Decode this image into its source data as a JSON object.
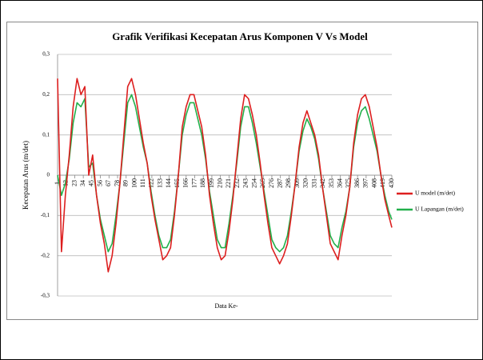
{
  "chart_data": {
    "type": "line",
    "title": "Grafik Verifikasi Kecepatan Arus Komponen V Vs Model",
    "x_label": "Data Ke-",
    "y_label": "Kecepatan Arus (m/det)",
    "x": [
      1,
      6,
      11,
      16,
      21,
      26,
      31,
      36,
      41,
      46,
      51,
      56,
      61,
      66,
      71,
      76,
      81,
      86,
      91,
      96,
      101,
      106,
      111,
      116,
      121,
      126,
      131,
      136,
      141,
      146,
      151,
      156,
      161,
      166,
      171,
      176,
      181,
      186,
      191,
      196,
      201,
      206,
      211,
      216,
      221,
      226,
      231,
      236,
      241,
      246,
      251,
      256,
      261,
      266,
      271,
      276,
      281,
      286,
      291,
      296,
      301,
      306,
      311,
      316,
      321,
      326,
      331,
      336,
      341,
      346,
      351,
      356,
      361,
      366,
      371,
      376,
      381,
      386,
      391,
      396,
      401,
      406,
      411,
      416,
      421,
      426,
      430
    ],
    "series": [
      {
        "name": "U model (m/det)",
        "color": "#dd1f1f",
        "values": [
          0.24,
          -0.19,
          -0.05,
          0.05,
          0.17,
          0.24,
          0.2,
          0.22,
          0.0,
          0.05,
          -0.05,
          -0.12,
          -0.17,
          -0.24,
          -0.2,
          -0.12,
          -0.02,
          0.1,
          0.22,
          0.24,
          0.2,
          0.14,
          0.08,
          0.03,
          -0.05,
          -0.11,
          -0.16,
          -0.21,
          -0.2,
          -0.18,
          -0.1,
          0.0,
          0.12,
          0.17,
          0.2,
          0.2,
          0.16,
          0.12,
          0.05,
          -0.05,
          -0.12,
          -0.18,
          -0.21,
          -0.2,
          -0.14,
          -0.06,
          0.04,
          0.14,
          0.2,
          0.19,
          0.15,
          0.1,
          0.03,
          -0.05,
          -0.12,
          -0.18,
          -0.2,
          -0.22,
          -0.2,
          -0.17,
          -0.1,
          -0.02,
          0.07,
          0.13,
          0.16,
          0.13,
          0.1,
          0.05,
          -0.03,
          -0.1,
          -0.17,
          -0.19,
          -0.21,
          -0.15,
          -0.1,
          -0.03,
          0.08,
          0.15,
          0.19,
          0.2,
          0.17,
          0.12,
          0.07,
          0.0,
          -0.06,
          -0.1,
          -0.13
        ]
      },
      {
        "name": "U Lapangan (m/det)",
        "color": "#22b04b",
        "values": [
          0.0,
          -0.05,
          -0.02,
          0.04,
          0.13,
          0.18,
          0.17,
          0.19,
          0.02,
          0.03,
          -0.05,
          -0.11,
          -0.15,
          -0.19,
          -0.17,
          -0.1,
          -0.02,
          0.08,
          0.18,
          0.2,
          0.17,
          0.12,
          0.07,
          0.03,
          -0.04,
          -0.1,
          -0.15,
          -0.18,
          -0.18,
          -0.16,
          -0.09,
          0.0,
          0.1,
          0.15,
          0.18,
          0.18,
          0.14,
          0.1,
          0.04,
          -0.04,
          -0.1,
          -0.16,
          -0.18,
          -0.18,
          -0.12,
          -0.05,
          0.03,
          0.12,
          0.17,
          0.17,
          0.13,
          0.08,
          0.02,
          -0.04,
          -0.1,
          -0.16,
          -0.18,
          -0.19,
          -0.18,
          -0.15,
          -0.09,
          -0.02,
          0.06,
          0.11,
          0.14,
          0.12,
          0.09,
          0.04,
          -0.03,
          -0.09,
          -0.15,
          -0.17,
          -0.18,
          -0.13,
          -0.09,
          -0.03,
          0.07,
          0.13,
          0.16,
          0.17,
          0.14,
          0.1,
          0.06,
          0.0,
          -0.05,
          -0.09,
          -0.11
        ]
      }
    ],
    "xlim": [
      1,
      430
    ],
    "xticks": [
      1,
      12,
      23,
      34,
      45,
      56,
      67,
      78,
      89,
      100,
      111,
      122,
      133,
      144,
      155,
      166,
      177,
      188,
      199,
      210,
      221,
      232,
      243,
      254,
      265,
      276,
      287,
      298,
      309,
      320,
      331,
      342,
      353,
      364,
      375,
      386,
      397,
      408,
      419,
      430
    ],
    "ylim": [
      -0.3,
      0.3
    ],
    "yticks": [
      {
        "value": -0.3,
        "label": "-0,3"
      },
      {
        "value": -0.2,
        "label": "-0,2"
      },
      {
        "value": -0.1,
        "label": "-0,1"
      },
      0,
      {
        "value": 0.1,
        "label": "0,1"
      },
      {
        "value": 0.2,
        "label": "0,2"
      },
      {
        "value": 0.3,
        "label": "0,3"
      }
    ],
    "grid": true,
    "legend": "right"
  }
}
